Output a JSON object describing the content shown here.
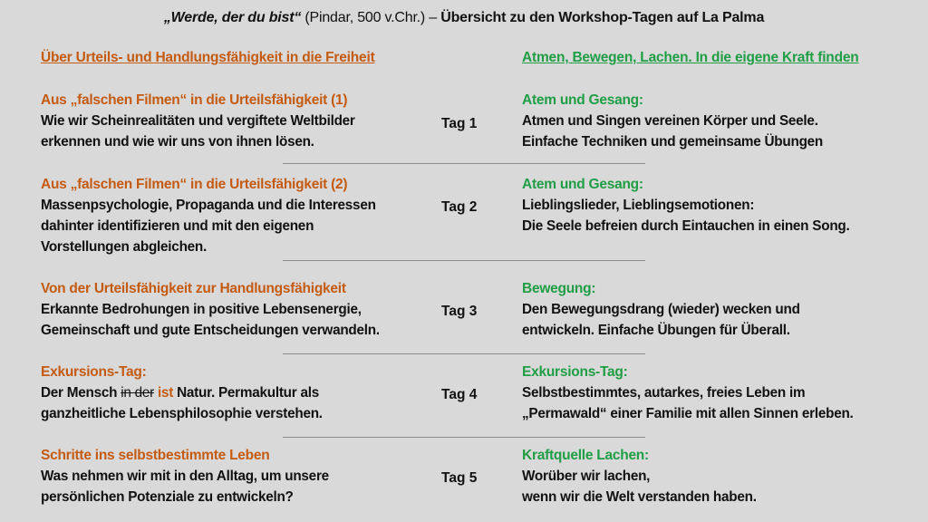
{
  "title": {
    "quote": "„Werde, der du bist“",
    "source": " (Pindar, 500 v.Chr.) – ",
    "main": "Übersicht zu den Workshop-Tagen auf La Palma"
  },
  "left_header": "Über Urteils- und Handlungsfähigkeit in die Freiheit",
  "right_header": "Atmen, Bewegen, Lachen. In die eigene Kraft finden",
  "colors": {
    "left_accent": "#c55a11",
    "right_accent": "#1f9e45",
    "background": "#d9d9d9"
  },
  "days": [
    {
      "tag": "Tag 1",
      "left": {
        "heading": "Aus „falschen Filmen“ in die Urteilsfähigkeit (1)",
        "lines": [
          "Wie wir Scheinrealitäten und vergiftete Weltbilder",
          "erkennen und wie wir uns von ihnen lösen."
        ]
      },
      "right": {
        "heading": "Atem und Gesang:",
        "lines": [
          "Atmen und Singen vereinen Körper und Seele.",
          "Einfache Techniken und gemeinsame Übungen"
        ]
      }
    },
    {
      "tag": "Tag 2",
      "left": {
        "heading": "Aus „falschen Filmen“ in die Urteilsfähigkeit (2)",
        "lines": [
          "Massenpsychologie, Propaganda und die Interessen",
          "dahinter identifizieren und mit den eigenen",
          "Vorstellungen abgleichen."
        ]
      },
      "right": {
        "heading": "Atem und Gesang:",
        "lines": [
          "Lieblingslieder, Lieblingsemotionen:",
          "Die Seele befreien durch Eintauchen in einen Song."
        ]
      }
    },
    {
      "tag": "Tag 3",
      "left": {
        "heading": "Von der Urteilsfähigkeit zur Handlungsfähigkeit",
        "lines": [
          "Erkannte Bedrohungen in positive Lebensenergie,",
          "Gemeinschaft und gute Entscheidungen verwandeln."
        ]
      },
      "right": {
        "heading": "Bewegung:",
        "lines": [
          "Den Bewegungsdrang (wieder) wecken und",
          "entwickeln. Einfache Übungen für Überall."
        ]
      }
    },
    {
      "tag": "Tag 4",
      "left": {
        "heading": "Exkursions-Tag:",
        "line1": {
          "a": "Der Mensch ",
          "struck": "in der",
          "inserted": "ist",
          "b": " Natur. Permakultur als"
        },
        "lines": [
          "ganzheitliche Lebensphilosophie verstehen."
        ]
      },
      "right": {
        "heading": "Exkursions-Tag:",
        "lines": [
          "Selbstbestimmtes, autarkes, freies Leben im",
          "„Permawald“ einer Familie mit allen Sinnen erleben."
        ]
      }
    },
    {
      "tag": "Tag 5",
      "left": {
        "heading": "Schritte ins selbstbestimmte Leben",
        "lines": [
          "Was nehmen wir mit in den Alltag, um unsere",
          "persönlichen Potenziale zu entwickeln?"
        ]
      },
      "right": {
        "heading": "Kraftquelle Lachen:",
        "lines": [
          "Worüber wir lachen,",
          "wenn wir die Welt verstanden haben."
        ]
      }
    }
  ]
}
